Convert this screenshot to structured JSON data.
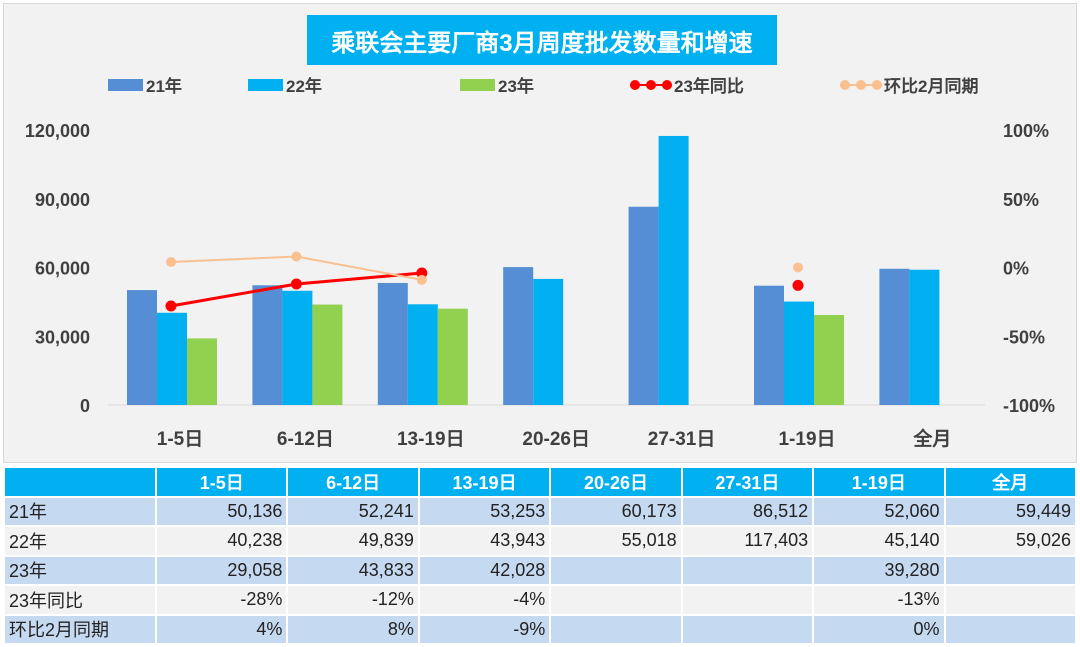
{
  "chart_data": {
    "type": "bar",
    "title": "乘联会主要厂商3月周度批发数量和增速",
    "categories": [
      "1-5日",
      "6-12日",
      "13-19日",
      "20-26日",
      "27-31日",
      "1-19日",
      "全月"
    ],
    "series": [
      {
        "name": "21年",
        "type": "bar",
        "axis": "left",
        "color": "#558ed5",
        "values": [
          50136,
          52241,
          53253,
          60173,
          86512,
          52060,
          59449
        ]
      },
      {
        "name": "22年",
        "type": "bar",
        "axis": "left",
        "color": "#00b0f0",
        "values": [
          40238,
          49839,
          43943,
          55018,
          117403,
          45140,
          59026
        ]
      },
      {
        "name": "23年",
        "type": "bar",
        "axis": "left",
        "color": "#92d050",
        "values": [
          29058,
          43833,
          42028,
          null,
          null,
          39280,
          null
        ]
      },
      {
        "name": "23年同比",
        "type": "line",
        "axis": "right",
        "color": "#ff0000",
        "values": [
          -28,
          -12,
          -4,
          null,
          null,
          -13,
          null
        ]
      },
      {
        "name": "环比2月同期",
        "type": "line",
        "axis": "right",
        "color": "#fac090",
        "values": [
          4,
          8,
          -9,
          null,
          null,
          0,
          null
        ]
      }
    ],
    "y_left": {
      "ylim": [
        0,
        120000
      ],
      "ticks": [
        "0",
        "30,000",
        "60,000",
        "90,000",
        "120,000"
      ]
    },
    "y_right": {
      "ylim": [
        -100,
        100
      ],
      "ticks": [
        "-100%",
        "-50%",
        "0%",
        "50%",
        "100%"
      ]
    },
    "legend": "top",
    "grid": false
  },
  "table": {
    "headers": [
      "",
      "1-5日",
      "6-12日",
      "13-19日",
      "20-26日",
      "27-31日",
      "1-19日",
      "全月"
    ],
    "rows": [
      [
        "21年",
        "50,136",
        "52,241",
        "53,253",
        "60,173",
        "86,512",
        "52,060",
        "59,449"
      ],
      [
        "22年",
        "40,238",
        "49,839",
        "43,943",
        "55,018",
        "117,403",
        "45,140",
        "59,026"
      ],
      [
        "23年",
        "29,058",
        "43,833",
        "42,028",
        "",
        "",
        "39,280",
        ""
      ],
      [
        "23年同比",
        "-28%",
        "-12%",
        "-4%",
        "",
        "",
        "-13%",
        ""
      ],
      [
        "环比2月同期",
        "4%",
        "8%",
        "-9%",
        "",
        "",
        "0%",
        ""
      ]
    ]
  }
}
